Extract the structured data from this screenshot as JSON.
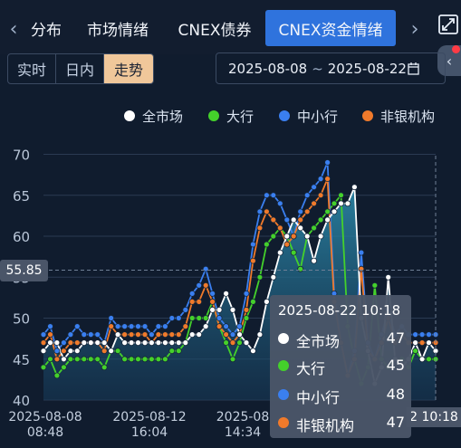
{
  "tabs": {
    "items": [
      "分布",
      "市场情绪",
      "CNEX债券",
      "CNEX资金情绪"
    ],
    "partial_first": "分布",
    "active_index": 3
  },
  "view_modes": [
    "实时",
    "日内",
    "走势"
  ],
  "active_view_mode": "走势",
  "date_range": {
    "start": "2025-08-08",
    "sep": "~",
    "end": "2025-08-22"
  },
  "icons": {
    "prev": "chevron-left-icon",
    "next": "chevron-right-icon",
    "expand": "expand-icon",
    "collapse": "chevron-left-icon",
    "calendar": "calendar-icon"
  },
  "chart_data": {
    "type": "line",
    "title": "",
    "yticks": [
      70,
      65,
      60,
      55,
      50,
      45,
      40
    ],
    "ylim": [
      40,
      72
    ],
    "xtick_labels": [
      {
        "date": "2025-08-08",
        "time": "08:48"
      },
      {
        "date": "2025-08-12",
        "time": "16:04"
      },
      {
        "date": "2025-08",
        "time": "14:34"
      }
    ],
    "legend": "top-right",
    "series": [
      {
        "name": "全市场",
        "color": "#ffffff",
        "values": [
          46,
          47,
          47,
          45,
          46,
          46,
          47,
          47,
          47,
          47,
          46,
          48,
          47,
          47,
          47,
          47,
          47,
          47,
          47,
          47,
          47,
          47,
          48,
          48,
          49,
          51,
          51,
          53,
          51,
          48,
          47,
          46,
          48,
          52,
          55,
          58,
          60,
          62,
          61,
          60,
          57,
          60,
          62,
          63,
          64,
          64,
          66,
          50,
          46,
          42,
          44,
          55,
          45,
          44,
          45,
          47,
          45,
          47,
          46
        ]
      },
      {
        "name": "大行",
        "color": "#44d12b",
        "values": [
          44,
          45,
          43,
          44,
          45,
          45,
          45,
          45,
          45,
          44,
          46,
          46,
          45,
          45,
          45,
          45,
          45,
          45,
          45,
          46,
          46,
          47,
          50,
          50,
          50,
          52,
          49,
          47,
          45,
          47,
          50,
          52,
          55,
          59,
          60,
          61,
          60,
          58,
          56,
          60,
          61,
          62,
          63,
          64,
          65,
          49,
          45,
          42,
          44,
          54,
          45,
          44,
          45,
          45,
          44,
          46,
          45,
          45,
          45
        ]
      },
      {
        "name": "中小行",
        "color": "#3a7ff0",
        "values": [
          48,
          49,
          46,
          47,
          48,
          49,
          48,
          48,
          48,
          47,
          50,
          49,
          49,
          49,
          49,
          49,
          48,
          49,
          49,
          50,
          50,
          51,
          53,
          54,
          56,
          53,
          50,
          49,
          48,
          49,
          53,
          59,
          63,
          65,
          65,
          64,
          62,
          60,
          63,
          65,
          66,
          67,
          69,
          53,
          47,
          43,
          46,
          58,
          47,
          45,
          48,
          51,
          48,
          49,
          48,
          48,
          48,
          48,
          48
        ]
      },
      {
        "name": "非银机构",
        "color": "#f07a2b",
        "values": [
          47,
          48,
          45,
          46,
          47,
          47,
          47,
          47,
          47,
          46,
          49,
          48,
          48,
          48,
          48,
          48,
          47,
          48,
          48,
          48,
          48,
          49,
          52,
          52,
          54,
          52,
          49,
          48,
          47,
          48,
          51,
          57,
          61,
          63,
          62,
          61,
          59,
          60,
          62,
          63,
          64,
          65,
          67,
          52,
          47,
          43,
          45,
          56,
          46,
          45,
          47,
          50,
          47,
          48,
          47,
          47,
          47,
          47,
          47
        ]
      }
    ],
    "crosshair": {
      "y_value": "55.85",
      "x_label": "2025-08-22 10:18",
      "x_label_short": "2 10:18"
    }
  },
  "tooltip": {
    "header": "2025-08-22 10:18",
    "rows": [
      {
        "name": "全市场",
        "value": "47",
        "color": "#ffffff"
      },
      {
        "name": "大行",
        "value": "45",
        "color": "#44d12b"
      },
      {
        "name": "中小行",
        "value": "48",
        "color": "#3a7ff0"
      },
      {
        "name": "非银机构",
        "value": "47",
        "color": "#f07a2b"
      }
    ]
  }
}
